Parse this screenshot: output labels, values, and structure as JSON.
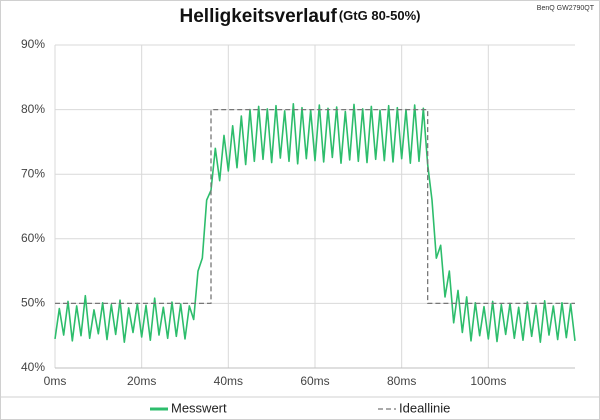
{
  "chart_data": {
    "type": "line",
    "title": "Helligkeitsverlauf",
    "subtitle": "(GtG 80-50%)",
    "annotation": "BenQ GW2790QT",
    "xlim": [
      0,
      120
    ],
    "xticks": [
      {
        "value": 0,
        "label": "0ms"
      },
      {
        "value": 20,
        "label": "20ms"
      },
      {
        "value": 40,
        "label": "40ms"
      },
      {
        "value": 60,
        "label": "60ms"
      },
      {
        "value": 80,
        "label": "80ms"
      },
      {
        "value": 100,
        "label": "100ms"
      }
    ],
    "ylim": [
      40,
      90
    ],
    "yticks": [
      {
        "value": 40,
        "label": "40%"
      },
      {
        "value": 50,
        "label": "50%"
      },
      {
        "value": 60,
        "label": "60%"
      },
      {
        "value": 70,
        "label": "70%"
      },
      {
        "value": 80,
        "label": "80%"
      },
      {
        "value": 90,
        "label": "90%"
      }
    ],
    "grid": true,
    "legend": "bottom",
    "series": [
      {
        "name": "Messwert",
        "color": "#2dbd6c",
        "style": "solid",
        "x": [
          0,
          1,
          2,
          3,
          4,
          5,
          6,
          7,
          8,
          9,
          10,
          11,
          12,
          13,
          14,
          15,
          16,
          17,
          18,
          19,
          20,
          21,
          22,
          23,
          24,
          25,
          26,
          27,
          28,
          29,
          30,
          31,
          32,
          33,
          34,
          35,
          36,
          37,
          38,
          39,
          40,
          41,
          42,
          43,
          44,
          45,
          46,
          47,
          48,
          49,
          50,
          51,
          52,
          53,
          54,
          55,
          56,
          57,
          58,
          59,
          60,
          61,
          62,
          63,
          64,
          65,
          66,
          67,
          68,
          69,
          70,
          71,
          72,
          73,
          74,
          75,
          76,
          77,
          78,
          79,
          80,
          81,
          82,
          83,
          84,
          85,
          86,
          87,
          88,
          89,
          90,
          91,
          92,
          93,
          94,
          95,
          96,
          97,
          98,
          99,
          100,
          101,
          102,
          103,
          104,
          105,
          106,
          107,
          108,
          109,
          110,
          111,
          112,
          113,
          114,
          115,
          116,
          117,
          118,
          119,
          120
        ],
        "values": [
          44.5,
          49.2,
          45.1,
          50.3,
          44.2,
          49.6,
          45.0,
          51.2,
          44.6,
          49.0,
          45.3,
          50.1,
          44.4,
          49.8,
          45.2,
          50.5,
          44.0,
          49.3,
          45.5,
          50.0,
          44.8,
          49.7,
          44.3,
          50.8,
          45.1,
          49.4,
          44.6,
          50.2,
          44.9,
          49.9,
          44.5,
          49.6,
          47.5,
          55,
          57,
          66,
          67.5,
          74,
          69,
          76,
          70.5,
          77.5,
          71,
          79,
          71.5,
          80,
          72,
          80.5,
          72.3,
          80.1,
          71.8,
          80.6,
          72.5,
          79.8,
          72.0,
          80.9,
          71.6,
          80.3,
          72.4,
          79.9,
          72.1,
          80.7,
          71.9,
          80.2,
          72.6,
          80.4,
          71.7,
          79.7,
          72.2,
          80.8,
          72.0,
          80.1,
          71.8,
          80.5,
          72.3,
          79.9,
          72.1,
          80.6,
          71.9,
          80.3,
          72.4,
          80.0,
          71.7,
          80.7,
          72.0,
          80.2,
          71.5,
          66,
          57,
          59,
          51,
          55,
          47,
          52,
          45.5,
          51,
          44.2,
          50.1,
          45.0,
          49.5,
          44.5,
          50.3,
          44.1,
          49.8,
          45.2,
          50.0,
          44.6,
          49.4,
          44.3,
          50.2,
          44.9,
          49.7,
          44.0,
          50.4,
          45.1,
          49.6,
          44.4,
          50.1,
          44.7,
          49.9,
          44.2
        ]
      },
      {
        "name": "Ideallinie",
        "color": "#777777",
        "style": "dashed",
        "x": [
          0,
          36,
          36,
          86,
          86,
          120
        ],
        "values": [
          50,
          50,
          80,
          80,
          50,
          50
        ]
      }
    ]
  }
}
